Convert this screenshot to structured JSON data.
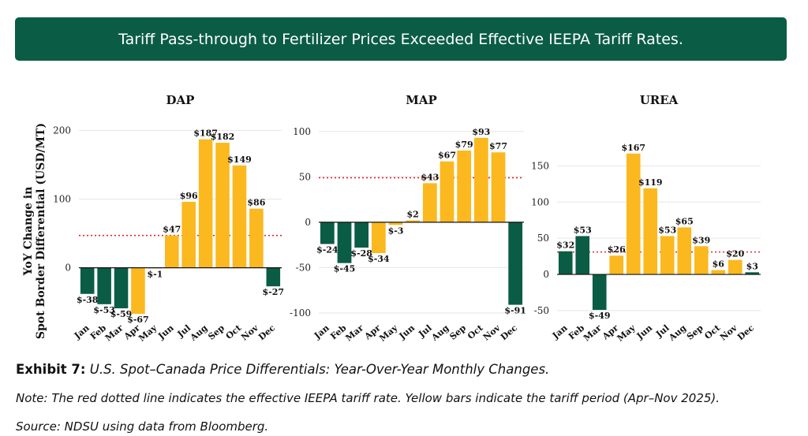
{
  "banner": {
    "title": "Tariff Pass-through to Fertilizer Prices Exceeded Effective IEEPA Tariff Rates."
  },
  "captions": {
    "exhibit_label": "Exhibit 7:",
    "exhibit_title": "U.S. Spot–Canada Price Differentials: Year-Over-Year Monthly Changes.",
    "note": "Note: The red dotted line indicates the effective IEEPA tariff rate. Yellow bars indicate the tariff period (Apr–Nov 2025).",
    "source": "Source: NDSU using data from Bloomberg."
  },
  "colors": {
    "negative": "#0b5c45",
    "tariff_period": "#fbb81f",
    "tariff_line": "#e0262c",
    "grid": "#e6e6e6"
  },
  "chart_data": [
    {
      "type": "bar",
      "title": "DAP",
      "ylabel": "YoY Change in Spot Border Differential (USD/MT)",
      "categories": [
        "Jan",
        "Feb",
        "Mar",
        "Apr",
        "May",
        "Jun",
        "Jul",
        "Aug",
        "Sep",
        "Oct",
        "Nov",
        "Dec"
      ],
      "values": [
        -38,
        -53,
        -59,
        -67,
        -1,
        47,
        96,
        187,
        182,
        149,
        86,
        -27
      ],
      "data_labels": [
        "$-38",
        "$-53",
        "$-59",
        "$-67",
        "$-1",
        "$47",
        "$96",
        "$187",
        "$182",
        "$149",
        "$86",
        "$-27"
      ],
      "tariff_period": [
        false,
        false,
        false,
        true,
        true,
        true,
        true,
        true,
        true,
        true,
        true,
        false
      ],
      "tariff_rate": 47,
      "yticks": [
        0,
        100,
        200
      ],
      "ylim": [
        -75,
        205
      ]
    },
    {
      "type": "bar",
      "title": "MAP",
      "categories": [
        "Jan",
        "Feb",
        "Mar",
        "Apr",
        "May",
        "Jun",
        "Jul",
        "Aug",
        "Sep",
        "Oct",
        "Nov",
        "Dec"
      ],
      "values": [
        -24,
        -45,
        -28,
        -34,
        -3,
        2,
        43,
        67,
        79,
        93,
        77,
        -91
      ],
      "data_labels": [
        "$-24",
        "$-45",
        "$-28",
        "$-34",
        "$-3",
        "$2",
        "$43",
        "$67",
        "$79",
        "$93",
        "$77",
        "$-91"
      ],
      "tariff_period": [
        false,
        false,
        false,
        true,
        true,
        true,
        true,
        true,
        true,
        true,
        true,
        false
      ],
      "tariff_rate": 49,
      "yticks": [
        -100,
        -50,
        0,
        50,
        100
      ],
      "ylim": [
        -107,
        105
      ]
    },
    {
      "type": "bar",
      "title": "UREA",
      "categories": [
        "Jan",
        "Feb",
        "Mar",
        "Apr",
        "May",
        "Jun",
        "Jul",
        "Aug",
        "Sep",
        "Oct",
        "Nov",
        "Dec"
      ],
      "values": [
        32,
        53,
        -49,
        26,
        167,
        119,
        53,
        65,
        39,
        6,
        20,
        3
      ],
      "data_labels": [
        "$32",
        "$53",
        "$-49",
        "$26",
        "$167",
        "$119",
        "$53",
        "$65",
        "$39",
        "$6",
        "$20",
        "$3"
      ],
      "tariff_period": [
        false,
        false,
        false,
        true,
        true,
        true,
        true,
        true,
        true,
        true,
        true,
        false
      ],
      "tariff_rate": 31,
      "yticks": [
        -50,
        0,
        50,
        100,
        150
      ],
      "ylim": [
        -62,
        182
      ]
    }
  ]
}
